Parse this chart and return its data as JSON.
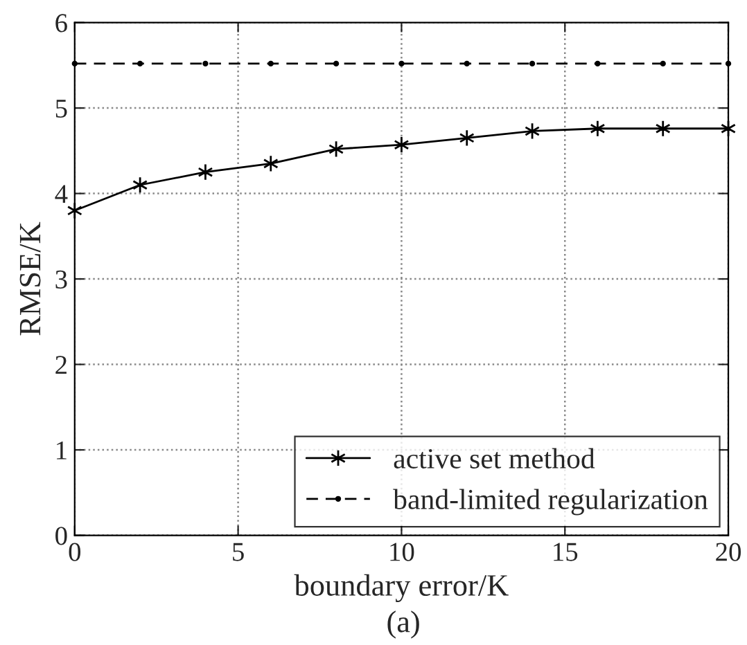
{
  "chart_data": {
    "type": "line",
    "xlabel": "boundary error/K",
    "ylabel": "RMSE/K",
    "x": [
      0,
      2,
      4,
      6,
      8,
      10,
      12,
      14,
      16,
      18,
      20
    ],
    "series": [
      {
        "name": "active set method",
        "color": "#000000",
        "marker": "cross",
        "line_style": "solid",
        "values": [
          3.8,
          4.1,
          4.25,
          4.35,
          4.52,
          4.57,
          4.65,
          4.73,
          4.76,
          4.76,
          4.76
        ]
      },
      {
        "name": "band-limited regularization",
        "color": "#000000",
        "marker": "circle",
        "line_style": "dashed",
        "values": [
          5.52,
          5.52,
          5.52,
          5.52,
          5.52,
          5.52,
          5.52,
          5.52,
          5.52,
          5.52,
          5.52
        ]
      }
    ],
    "xlim": [
      0,
      20
    ],
    "xticks": [
      0,
      5,
      10,
      15,
      20
    ],
    "ylim": [
      0,
      6
    ],
    "yticks": [
      0,
      1,
      2,
      3,
      4,
      5,
      6
    ],
    "grid": true,
    "legend": "bottom right",
    "annotations": [
      "(a)"
    ]
  }
}
